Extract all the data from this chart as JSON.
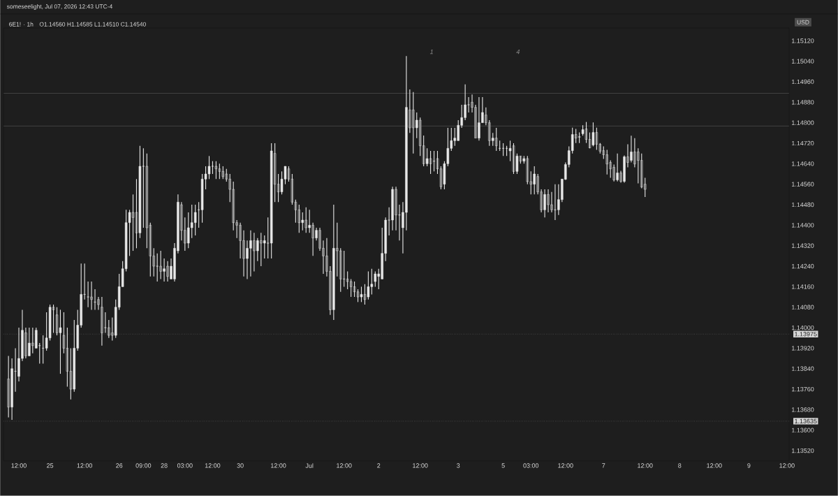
{
  "chart_data": {
    "type": "candlestick",
    "title": "6E1! · 1h",
    "subtitle": "O1.14560  H1.14585  L1.14510  C1.14540",
    "ylabel": "USD",
    "annotations": [
      "someseelight, Jul 07, 2026 12:43 UTC-4",
      "1",
      "4"
    ],
    "color": "#e8e8e8",
    "grid": false,
    "categories": [
      null,
      null,
      null,
      "12:00",
      null,
      null,
      null,
      null,
      null,
      null,
      null,
      null,
      "25",
      null,
      null,
      null,
      null,
      null,
      null,
      null,
      null,
      null,
      "12:00",
      null,
      null,
      null,
      null,
      null,
      null,
      null,
      null,
      null,
      "26",
      null,
      null,
      null,
      null,
      null,
      null,
      "09:00",
      null,
      null,
      null,
      null,
      null,
      "28",
      null,
      null,
      null,
      null,
      null,
      "03:00",
      null,
      null,
      null,
      null,
      null,
      null,
      null,
      "12:00",
      null,
      null,
      null,
      null,
      null,
      null,
      null,
      "30",
      null,
      null,
      null,
      null,
      null,
      null,
      null,
      null,
      null,
      null,
      "12:00",
      null,
      null,
      null,
      null,
      null,
      null,
      null,
      null,
      "Jul",
      null,
      null,
      null,
      null,
      null,
      null,
      null,
      null,
      null,
      "12:00",
      null,
      null,
      null,
      null,
      null,
      null,
      null,
      null,
      null,
      "2",
      null,
      null,
      null,
      null,
      null,
      null,
      null,
      null,
      null,
      null,
      null,
      "12:00",
      null,
      null,
      null,
      null,
      null,
      null,
      null,
      null,
      null,
      null,
      "3",
      null,
      null,
      null,
      null,
      null,
      null,
      null,
      null,
      null,
      null,
      null,
      null,
      "5",
      null,
      null,
      null,
      null,
      null,
      null,
      null,
      "03:00",
      null,
      null,
      null,
      null,
      null,
      null,
      null,
      null,
      null,
      "12:00",
      null,
      null,
      null,
      null,
      null,
      null,
      null,
      null,
      null,
      null,
      "7",
      null,
      null,
      null,
      null,
      null,
      null,
      null,
      null,
      null,
      null,
      null,
      "12:00",
      null,
      null,
      null,
      null,
      null,
      null,
      null,
      null,
      null,
      "8",
      null,
      null,
      null,
      null,
      null,
      null,
      null,
      null,
      null,
      "12:00",
      null,
      null,
      null,
      null,
      null,
      null,
      null,
      null,
      null,
      "9",
      null,
      null,
      null,
      null,
      null,
      null,
      null,
      null,
      null,
      null,
      "12:00",
      null,
      null
    ],
    "ohlc": [
      [
        1.138,
        1.1389,
        1.1365,
        1.1369
      ],
      [
        1.1369,
        1.1388,
        1.1364,
        1.1384
      ],
      [
        1.1383,
        1.1392,
        1.1375,
        1.1383
      ],
      [
        1.1381,
        1.14,
        1.1379,
        1.1388
      ],
      [
        1.1388,
        1.1407,
        1.1387,
        1.1399
      ],
      [
        1.1398,
        1.14,
        1.1388,
        1.1389
      ],
      [
        1.1389,
        1.14,
        1.1389,
        1.1394
      ],
      [
        1.1394,
        1.14,
        1.139,
        1.1393
      ],
      [
        1.1392,
        1.14,
        1.1392,
        1.1399
      ],
      [
        1.1393,
        1.1394,
        1.1386,
        1.1393
      ],
      [
        1.1392,
        1.1397,
        1.1386,
        1.1392
      ],
      [
        1.1392,
        1.1406,
        1.1391,
        1.1396
      ],
      [
        1.1396,
        1.1409,
        1.1395,
        1.1408
      ],
      [
        1.1408,
        1.1409,
        1.1398,
        1.1407
      ],
      [
        1.1405,
        1.1408,
        1.1397,
        1.1398
      ],
      [
        1.1398,
        1.1407,
        1.1382,
        1.14
      ],
      [
        1.1397,
        1.1406,
        1.139,
        1.1392
      ],
      [
        1.1392,
        1.14,
        1.1377,
        1.1383
      ],
      [
        1.1383,
        1.1392,
        1.1372,
        1.1376
      ],
      [
        1.1376,
        1.1403,
        1.1375,
        1.1392
      ],
      [
        1.1392,
        1.1407,
        1.1391,
        1.1401
      ],
      [
        1.1401,
        1.1425,
        1.14,
        1.1413
      ],
      [
        1.1413,
        1.1425,
        1.1411,
        1.1413
      ],
      [
        1.1412,
        1.1418,
        1.1408,
        1.1412
      ],
      [
        1.1412,
        1.1418,
        1.1407,
        1.1411
      ],
      [
        1.141,
        1.1415,
        1.1407,
        1.141
      ],
      [
        1.1411,
        1.1412,
        1.1407,
        1.1409
      ],
      [
        1.1408,
        1.1412,
        1.1393,
        1.1398
      ],
      [
        1.14,
        1.1406,
        1.1398,
        1.14
      ],
      [
        1.14,
        1.1403,
        1.1396,
        1.1397
      ],
      [
        1.1398,
        1.1404,
        1.1395,
        1.1397
      ],
      [
        1.1397,
        1.1411,
        1.1396,
        1.1408
      ],
      [
        1.1408,
        1.1421,
        1.1407,
        1.1416
      ],
      [
        1.1416,
        1.1426,
        1.1416,
        1.1423
      ],
      [
        1.1423,
        1.1446,
        1.1422,
        1.1441
      ],
      [
        1.1441,
        1.1446,
        1.1428,
        1.1445
      ],
      [
        1.1445,
        1.1452,
        1.143,
        1.1443
      ],
      [
        1.1445,
        1.1458,
        1.1431,
        1.1437
      ],
      [
        1.1437,
        1.1471,
        1.1435,
        1.1463
      ],
      [
        1.1463,
        1.147,
        1.1439,
        1.1463
      ],
      [
        1.1463,
        1.1468,
        1.1431,
        1.1439
      ],
      [
        1.144,
        1.1441,
        1.142,
        1.1428
      ],
      [
        1.1428,
        1.1431,
        1.142,
        1.1424
      ],
      [
        1.1424,
        1.1429,
        1.1418,
        1.1424
      ],
      [
        1.1424,
        1.143,
        1.1419,
        1.1422
      ],
      [
        1.1422,
        1.1427,
        1.1418,
        1.1423
      ],
      [
        1.1424,
        1.1426,
        1.1418,
        1.142
      ],
      [
        1.1419,
        1.1427,
        1.1419,
        1.1424
      ],
      [
        1.1419,
        1.1433,
        1.1418,
        1.1431
      ],
      [
        1.143,
        1.1452,
        1.1429,
        1.1449
      ],
      [
        1.1448,
        1.1449,
        1.1434,
        1.1438
      ],
      [
        1.1438,
        1.1443,
        1.143,
        1.1433
      ],
      [
        1.1433,
        1.1445,
        1.1431,
        1.1439
      ],
      [
        1.1439,
        1.1448,
        1.1435,
        1.1441
      ],
      [
        1.1441,
        1.1448,
        1.1436,
        1.1445
      ],
      [
        1.1446,
        1.1449,
        1.1439,
        1.1446
      ],
      [
        1.1446,
        1.146,
        1.1441,
        1.1458
      ],
      [
        1.1458,
        1.1463,
        1.1454,
        1.146
      ],
      [
        1.146,
        1.1467,
        1.1458,
        1.1463
      ],
      [
        1.1463,
        1.1465,
        1.146,
        1.1463
      ],
      [
        1.1463,
        1.1465,
        1.1458,
        1.1462
      ],
      [
        1.1462,
        1.1464,
        1.1458,
        1.1461
      ],
      [
        1.1461,
        1.1463,
        1.1458,
        1.1459
      ],
      [
        1.146,
        1.1462,
        1.1457,
        1.1458
      ],
      [
        1.1458,
        1.146,
        1.1449,
        1.1454
      ],
      [
        1.1454,
        1.1457,
        1.1438,
        1.1441
      ],
      [
        1.1441,
        1.1442,
        1.1435,
        1.144
      ],
      [
        1.144,
        1.1441,
        1.1427,
        1.1434
      ],
      [
        1.1434,
        1.1438,
        1.142,
        1.1427
      ],
      [
        1.1427,
        1.1434,
        1.1419,
        1.1431
      ],
      [
        1.1431,
        1.1438,
        1.142,
        1.1434
      ],
      [
        1.1434,
        1.1437,
        1.1422,
        1.143
      ],
      [
        1.143,
        1.1435,
        1.1426,
        1.1434
      ],
      [
        1.1434,
        1.1437,
        1.1424,
        1.1433
      ],
      [
        1.1433,
        1.1436,
        1.1427,
        1.1434
      ],
      [
        1.1433,
        1.1443,
        1.1427,
        1.1433
      ],
      [
        1.1433,
        1.1472,
        1.1427,
        1.1469
      ],
      [
        1.1468,
        1.1472,
        1.1449,
        1.1456
      ],
      [
        1.1456,
        1.146,
        1.1449,
        1.1453
      ],
      [
        1.1453,
        1.1461,
        1.1452,
        1.1458
      ],
      [
        1.1458,
        1.1463,
        1.1456,
        1.1463
      ],
      [
        1.1462,
        1.1463,
        1.1457,
        1.1458
      ],
      [
        1.1458,
        1.146,
        1.1448,
        1.1449
      ],
      [
        1.1449,
        1.145,
        1.1441,
        1.1446
      ],
      [
        1.1446,
        1.1448,
        1.1437,
        1.1441
      ],
      [
        1.1441,
        1.1445,
        1.1438,
        1.1442
      ],
      [
        1.1442,
        1.1447,
        1.1437,
        1.1439
      ],
      [
        1.1439,
        1.1446,
        1.1437,
        1.144
      ],
      [
        1.144,
        1.1441,
        1.1428,
        1.1435
      ],
      [
        1.1435,
        1.1439,
        1.1434,
        1.1438
      ],
      [
        1.1438,
        1.1439,
        1.143,
        1.1431
      ],
      [
        1.1431,
        1.1434,
        1.1421,
        1.1428
      ],
      [
        1.1428,
        1.1435,
        1.142,
        1.1422
      ],
      [
        1.1422,
        1.1424,
        1.1405,
        1.1407
      ],
      [
        1.1407,
        1.1448,
        1.1403,
        1.1431
      ],
      [
        1.1431,
        1.1441,
        1.142,
        1.143
      ],
      [
        1.143,
        1.1431,
        1.1414,
        1.1419
      ],
      [
        1.1419,
        1.143,
        1.1416,
        1.1419
      ],
      [
        1.1419,
        1.1422,
        1.1415,
        1.1418
      ],
      [
        1.1418,
        1.1419,
        1.1412,
        1.1416
      ],
      [
        1.1416,
        1.1418,
        1.1412,
        1.1414
      ],
      [
        1.1414,
        1.1415,
        1.141,
        1.1412
      ],
      [
        1.1412,
        1.1416,
        1.141,
        1.1413
      ],
      [
        1.1413,
        1.1417,
        1.1409,
        1.1411
      ],
      [
        1.1412,
        1.1422,
        1.1411,
        1.1416
      ],
      [
        1.1416,
        1.1423,
        1.1413,
        1.1417
      ],
      [
        1.1418,
        1.1422,
        1.1416,
        1.1421
      ],
      [
        1.142,
        1.1423,
        1.1415,
        1.1421
      ],
      [
        1.1419,
        1.1439,
        1.1419,
        1.1429
      ],
      [
        1.1429,
        1.1443,
        1.1426,
        1.1442
      ],
      [
        1.1442,
        1.1447,
        1.1436,
        1.1442
      ],
      [
        1.1442,
        1.1455,
        1.1438,
        1.1454
      ],
      [
        1.1454,
        1.1455,
        1.1438,
        1.1444
      ],
      [
        1.1444,
        1.1448,
        1.1434,
        1.1444
      ],
      [
        1.1439,
        1.1449,
        1.1429,
        1.1445
      ],
      [
        1.1445,
        1.1506,
        1.1438,
        1.1486
      ],
      [
        1.1485,
        1.1493,
        1.1476,
        1.1478
      ],
      [
        1.1485,
        1.1492,
        1.1468,
        1.1478
      ],
      [
        1.1478,
        1.1484,
        1.1474,
        1.1481
      ],
      [
        1.1481,
        1.1482,
        1.1467,
        1.1471
      ],
      [
        1.1471,
        1.1475,
        1.1463,
        1.1464
      ],
      [
        1.1464,
        1.147,
        1.1463,
        1.1466
      ],
      [
        1.1466,
        1.1469,
        1.146,
        1.1464
      ],
      [
        1.1465,
        1.1469,
        1.1461,
        1.1465
      ],
      [
        1.1466,
        1.1469,
        1.146,
        1.1462
      ],
      [
        1.1462,
        1.1463,
        1.1454,
        1.1455
      ],
      [
        1.1456,
        1.1465,
        1.1454,
        1.1464
      ],
      [
        1.1464,
        1.1478,
        1.1463,
        1.147
      ],
      [
        1.147,
        1.1478,
        1.1469,
        1.1473
      ],
      [
        1.1473,
        1.1478,
        1.1471,
        1.1474
      ],
      [
        1.1473,
        1.1481,
        1.1473,
        1.1479
      ],
      [
        1.1479,
        1.1487,
        1.1478,
        1.1482
      ],
      [
        1.1482,
        1.1495,
        1.1481,
        1.1487
      ],
      [
        1.1487,
        1.149,
        1.1484,
        1.1487
      ],
      [
        1.1488,
        1.1491,
        1.1484,
        1.1486
      ],
      [
        1.1486,
        1.1487,
        1.1474,
        1.1474
      ],
      [
        1.1474,
        1.149,
        1.1473,
        1.148
      ],
      [
        1.148,
        1.149,
        1.148,
        1.1484
      ],
      [
        1.1483,
        1.1486,
        1.1479,
        1.148
      ],
      [
        1.148,
        1.1481,
        1.1471,
        1.1473
      ],
      [
        1.1473,
        1.1476,
        1.1471,
        1.1474
      ],
      [
        1.1474,
        1.1478,
        1.1469,
        1.1471
      ],
      [
        1.147,
        1.1473,
        1.1469,
        1.147
      ],
      [
        1.147,
        1.1472,
        1.1467,
        1.147
      ],
      [
        1.147,
        1.1471,
        1.1467,
        1.147
      ],
      [
        1.1469,
        1.1473,
        1.1465,
        1.147
      ],
      [
        1.1471,
        1.1472,
        1.146,
        1.1461
      ],
      [
        1.1461,
        1.1468,
        1.146,
        1.1467
      ],
      [
        1.1467,
        1.1467,
        1.1464,
        1.1465
      ],
      [
        1.1465,
        1.1467,
        1.1464,
        1.1466
      ],
      [
        1.1466,
        1.1467,
        1.1456,
        1.1457
      ],
      [
        1.1457,
        1.1461,
        1.1452,
        1.1456
      ],
      [
        1.1456,
        1.1463,
        1.1452,
        1.146
      ],
      [
        1.1459,
        1.146,
        1.1452,
        1.1453
      ],
      [
        1.1453,
        1.1454,
        1.1445,
        1.1446
      ],
      [
        1.1446,
        1.1454,
        1.1443,
        1.1452
      ],
      [
        1.1452,
        1.1454,
        1.1445,
        1.1448
      ],
      [
        1.1448,
        1.1453,
        1.1445,
        1.1446
      ],
      [
        1.1446,
        1.1456,
        1.1442,
        1.1446
      ],
      [
        1.1446,
        1.1456,
        1.1444,
        1.145
      ],
      [
        1.145,
        1.1458,
        1.1449,
        1.1458
      ],
      [
        1.14579,
        1.14645,
        1.14577,
        1.14637
      ],
      [
        1.14637,
        1.14708,
        1.14626,
        1.14691
      ],
      [
        1.14691,
        1.14781,
        1.1468,
        1.14754
      ],
      [
        1.14754,
        1.14776,
        1.14721,
        1.1474
      ],
      [
        1.14746,
        1.14762,
        1.14721,
        1.14743
      ],
      [
        1.14757,
        1.1479,
        1.14749,
        1.14773
      ],
      [
        1.14776,
        1.14803,
        1.14721,
        1.14735
      ],
      [
        1.14735,
        1.14762,
        1.147,
        1.14702
      ],
      [
        1.14713,
        1.14801,
        1.14708,
        1.14762
      ],
      [
        1.14762,
        1.14781,
        1.14694,
        1.14716
      ],
      [
        1.14716,
        1.14721,
        1.1468,
        1.14689
      ],
      [
        1.14691,
        1.14708,
        1.14659,
        1.14675
      ],
      [
        1.14675,
        1.14694,
        1.14598,
        1.14639
      ],
      [
        1.14645,
        1.14653,
        1.14585,
        1.1462
      ],
      [
        1.14626,
        1.14637,
        1.14571,
        1.14577
      ],
      [
        1.14577,
        1.1468,
        1.14571,
        1.14604
      ],
      [
        1.14604,
        1.14612,
        1.14566,
        1.14571
      ],
      [
        1.14571,
        1.14672,
        1.14566,
        1.14667
      ],
      [
        1.14667,
        1.14716,
        1.14626,
        1.14645
      ],
      [
        1.14653,
        1.14749,
        1.14645,
        1.14686
      ],
      [
        1.14686,
        1.1474,
        1.14626,
        1.14639
      ],
      [
        1.14686,
        1.147,
        1.14563,
        1.14653
      ],
      [
        1.14653,
        1.1468,
        1.14544,
        1.14549
      ],
      [
        1.1456,
        1.14585,
        1.1451,
        1.1454
      ],
      null,
      null,
      null,
      null,
      null,
      null,
      null,
      null,
      null,
      null,
      null,
      null,
      null,
      null,
      null,
      null,
      null,
      null,
      null,
      null,
      null,
      null,
      null,
      null,
      null,
      null,
      null,
      null,
      null,
      null,
      null,
      null,
      null,
      null,
      null,
      null,
      null,
      null,
      null,
      null,
      null,
      null,
      null
    ],
    "ylim": [
      1.1348,
      1.1517
    ],
    "yticks": [
      {
        "value": 1.1352,
        "label": "1.13520"
      },
      {
        "value": 1.136,
        "label": "1.13600"
      },
      {
        "value": 1.1368,
        "label": "1.13680"
      },
      {
        "value": 1.1376,
        "label": "1.13760"
      },
      {
        "value": 1.1384,
        "label": "1.13840"
      },
      {
        "value": 1.1392,
        "label": "1.13920"
      },
      {
        "value": 1.14,
        "label": "1.14000"
      },
      {
        "value": 1.1408,
        "label": "1.14080"
      },
      {
        "value": 1.1416,
        "label": "1.14160"
      },
      {
        "value": 1.1424,
        "label": "1.14240"
      },
      {
        "value": 1.1432,
        "label": "1.14320"
      },
      {
        "value": 1.144,
        "label": "1.14400"
      },
      {
        "value": 1.1448,
        "label": "1.14480"
      },
      {
        "value": 1.1456,
        "label": "1.14560"
      },
      {
        "value": 1.1464,
        "label": "1.14640"
      },
      {
        "value": 1.1472,
        "label": "1.14720"
      },
      {
        "value": 1.148,
        "label": "1.14800"
      },
      {
        "value": 1.1488,
        "label": "1.14880"
      },
      {
        "value": 1.1496,
        "label": "1.14960"
      },
      {
        "value": 1.1504,
        "label": "1.15040"
      },
      {
        "value": 1.1512,
        "label": "1.15120"
      }
    ],
    "ref_lines": [
      {
        "axis": "y",
        "value": 1.13975,
        "label": "1.13975",
        "color": "#808080",
        "line_style": "dotted"
      },
      {
        "axis": "y",
        "value": 1.13635,
        "label": "1.13635",
        "color": "#808080",
        "line_style": "dotted"
      },
      {
        "axis": "y",
        "value": 1.14915,
        "color": "#5c5c5c",
        "line_style": "solid"
      },
      {
        "axis": "y",
        "value": 1.14787,
        "color": "#5c5c5c",
        "line_style": "solid"
      }
    ]
  }
}
